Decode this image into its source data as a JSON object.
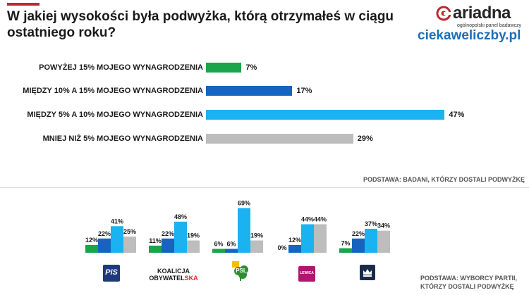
{
  "header": {
    "title": "W jakiej wysokości była podwyżka, którą otrzymałeś w ciągu ostatniego roku?",
    "brand": {
      "logo_text": "ariadna",
      "logo_subtext": "ogólnopolski panel badawczy",
      "site": "ciekaweliczby.pl",
      "accent_color": "#c0272d",
      "site_color": "#1c6fb8"
    }
  },
  "chart_data": [
    {
      "type": "bar",
      "orientation": "horizontal",
      "categories": [
        "POWYŻEJ 15% MOJEGO WYNAGRODZENIA",
        "MIĘDZY 10% A 15% MOJEGO WYNAGRODZENIA",
        "MIĘDZY 5% A 10% MOJEGO WYNAGRODZENIA",
        "MNIEJ NIŻ 5% MOJEGO WYNAGRODZENIA"
      ],
      "values": [
        7,
        17,
        47,
        29
      ],
      "value_labels": [
        "7%",
        "17%",
        "47%",
        "29%"
      ],
      "colors": [
        "#1aa54a",
        "#1565c0",
        "#1ab2f0",
        "#bdbdbd"
      ],
      "unit": "%",
      "note": "PODSTAWA: BADANI, KTÓRZY DOSTALI PODWYŻKĘ"
    },
    {
      "type": "bar",
      "orientation": "vertical",
      "groups": [
        "PiS",
        "KOALICJA OBYWATELSKA",
        "PSL",
        "LEWICA",
        "KONFEDERACJA"
      ],
      "series_colors": [
        "#1aa54a",
        "#1565c0",
        "#1ab2f0",
        "#bdbdbd"
      ],
      "values": [
        [
          12,
          22,
          41,
          25
        ],
        [
          11,
          22,
          48,
          19
        ],
        [
          6,
          6,
          69,
          19
        ],
        [
          0,
          12,
          44,
          44
        ],
        [
          7,
          22,
          37,
          34
        ]
      ],
      "value_labels": [
        [
          "12%",
          "22%",
          "41%",
          "25%"
        ],
        [
          "11%",
          "22%",
          "48%",
          "19%"
        ],
        [
          "6%",
          "6%",
          "69%",
          "19%"
        ],
        [
          "0%",
          "12%",
          "44%",
          "44%"
        ],
        [
          "7%",
          "22%",
          "37%",
          "34%"
        ]
      ],
      "note_line1": "PODSTAWA: WYBORCY PARTII,",
      "note_line2": "KTÓRZY DOSTALI PODWYŻKĘ"
    }
  ],
  "party_logos": [
    {
      "name": "pis-logo",
      "text": "PiS",
      "bg": "#1f3a7a",
      "fg": "#ffffff"
    },
    {
      "name": "ko-logo",
      "line1": "KOALICJA",
      "line2_a": "OBYWATEL",
      "line2_b": "SKA",
      "fg_a": "#1a1a1a",
      "fg_b": "#e2231a"
    },
    {
      "name": "psl-logo",
      "text": "PSL",
      "bg": "#9bc23c",
      "fg": "#ffffff"
    },
    {
      "name": "lewica-logo",
      "text": "LEWICA",
      "bg": "#b0156f",
      "fg": "#ffffff"
    },
    {
      "name": "konfederacja-logo",
      "bg": "#1b2c4a"
    }
  ]
}
